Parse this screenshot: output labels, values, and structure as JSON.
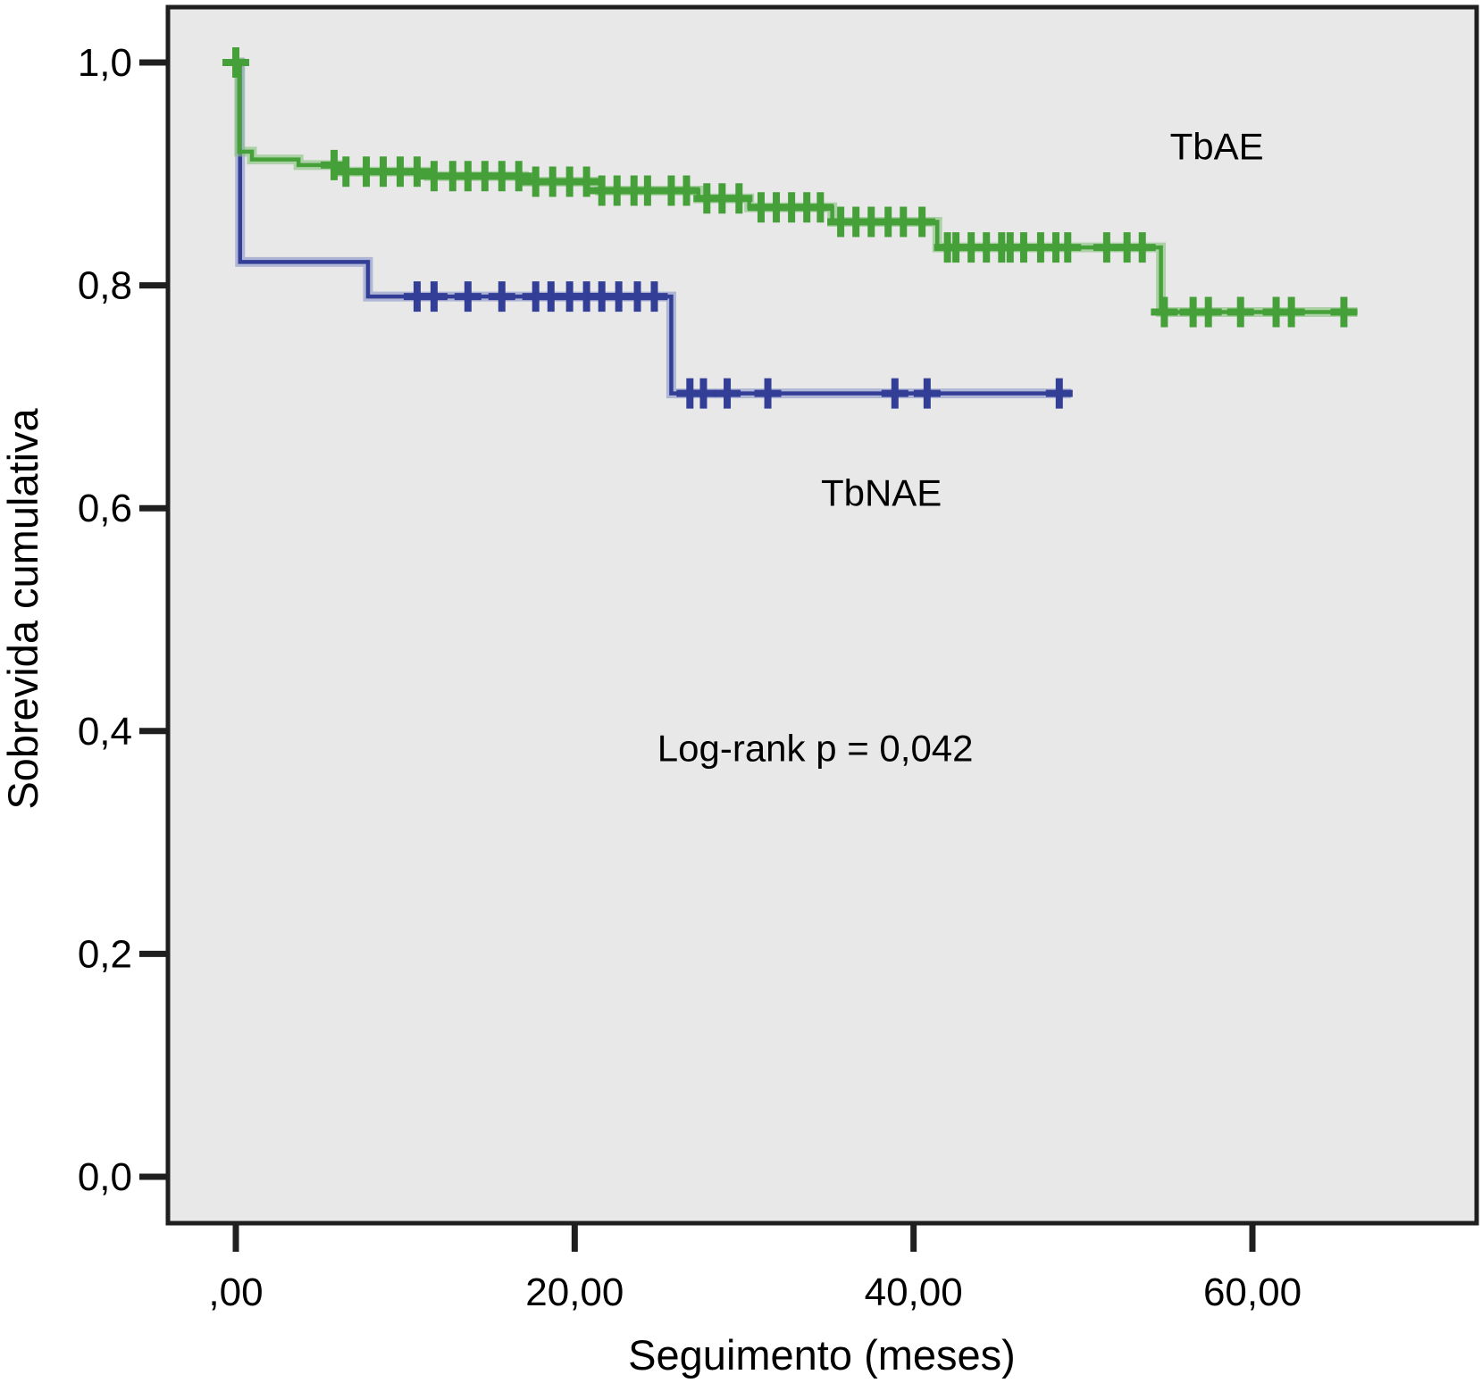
{
  "figure": {
    "background": "#ffffff",
    "plot_background": "#e8e8e8",
    "frame_color": "#1f1f1f",
    "text_color": "#000000"
  },
  "chart_data": {
    "type": "line",
    "subtype": "kaplan-meier-step-curves",
    "title": "",
    "xlabel": "Seguimento (meses)",
    "ylabel": "Sobrevida cumulativa",
    "xlim": [
      -4,
      73.2
    ],
    "ylim": [
      -0.042,
      1.05
    ],
    "grid": false,
    "legend_position": "inline-annotations",
    "x_ticks": [
      {
        "value": 0,
        "label": ",00"
      },
      {
        "value": 20,
        "label": "20,00"
      },
      {
        "value": 40,
        "label": "40,00"
      },
      {
        "value": 60,
        "label": "60,00"
      }
    ],
    "y_ticks": [
      {
        "value": 0.0,
        "label": "0,0"
      },
      {
        "value": 0.2,
        "label": "0,2"
      },
      {
        "value": 0.4,
        "label": "0,4"
      },
      {
        "value": 0.6,
        "label": "0,6"
      },
      {
        "value": 0.8,
        "label": "0,8"
      },
      {
        "value": 1.0,
        "label": "1,0"
      }
    ],
    "series": [
      {
        "name": "TbNAE",
        "color": "#333f96",
        "halo_color": "#8a94c9",
        "steps": [
          [
            0,
            1.0
          ],
          [
            0.25,
            0.821
          ],
          [
            7.8,
            0.79
          ],
          [
            25.7,
            0.703
          ]
        ],
        "end_time": 49.3,
        "censor_times": [
          10.7,
          11.7,
          13.7,
          15.7,
          17.7,
          18.6,
          19.7,
          20.7,
          21.6,
          22.6,
          23.7,
          24.7,
          26.8,
          27.6,
          29.0,
          31.4,
          38.9,
          40.8,
          48.6
        ]
      },
      {
        "name": "TbAE",
        "color": "#46a039",
        "halo_color": "#85c17c",
        "steps": [
          [
            0,
            1.0
          ],
          [
            0.2,
            0.92
          ],
          [
            0.95,
            0.913
          ],
          [
            3.7,
            0.908
          ],
          [
            6.1,
            0.902
          ],
          [
            11.4,
            0.898
          ],
          [
            17.0,
            0.893
          ],
          [
            21.5,
            0.885
          ],
          [
            27.3,
            0.878
          ],
          [
            30.3,
            0.87
          ],
          [
            35.2,
            0.857
          ],
          [
            41.4,
            0.834
          ],
          [
            54.6,
            0.776
          ]
        ],
        "end_time": 66.2,
        "censor_times": [
          0,
          5.8,
          6.5,
          7.7,
          8.7,
          9.7,
          10.7,
          11.7,
          12.8,
          13.7,
          14.7,
          15.7,
          16.7,
          17.7,
          18.7,
          19.7,
          20.7,
          21.6,
          22.5,
          23.5,
          24.3,
          25.7,
          26.6,
          27.8,
          28.7,
          29.7,
          31.0,
          31.9,
          32.8,
          33.7,
          34.5,
          35.7,
          36.6,
          37.5,
          38.5,
          39.4,
          40.5,
          42.0,
          42.5,
          43.4,
          44.3,
          45.2,
          45.7,
          46.5,
          47.5,
          48.4,
          49.1,
          51.4,
          52.6,
          53.5,
          54.8,
          56.5,
          57.4,
          59.3,
          61.4,
          62.3,
          65.4
        ]
      }
    ],
    "annotations": [
      {
        "label": "TbAE",
        "t": 57.9,
        "v": 0.925
      },
      {
        "label": "TbNAE",
        "t": 38.1,
        "v": 0.614
      },
      {
        "label": "Log-rank p = 0,042",
        "t": 34.2,
        "v": 0.385
      }
    ]
  }
}
